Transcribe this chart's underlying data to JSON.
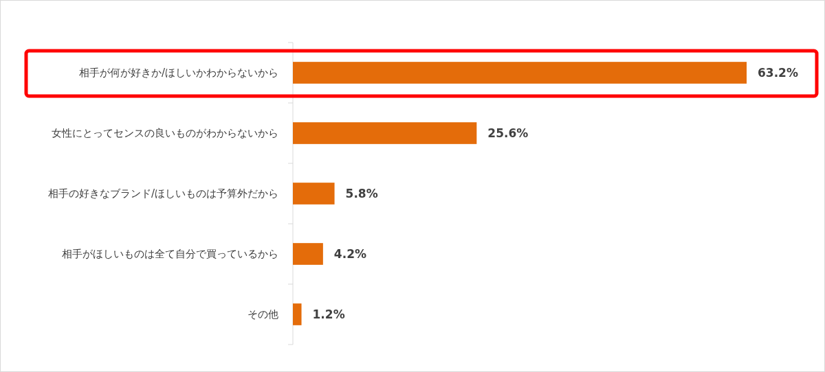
{
  "chart_data": {
    "type": "bar",
    "orientation": "horizontal",
    "categories": [
      "相手が何が好きか/ほしいかわからないから",
      "女性にとってセンスの良いものがわからないから",
      "相手の好きなブランド/ほしいものは予算外だから",
      "相手がほしいものは全て自分で買っているから",
      "その他"
    ],
    "values": [
      63.2,
      25.6,
      5.8,
      4.2,
      1.2
    ],
    "value_labels": [
      "63.2%",
      "25.6%",
      "5.8%",
      "4.2%",
      "1.2%"
    ],
    "color": "#e46c0a"
  }
}
